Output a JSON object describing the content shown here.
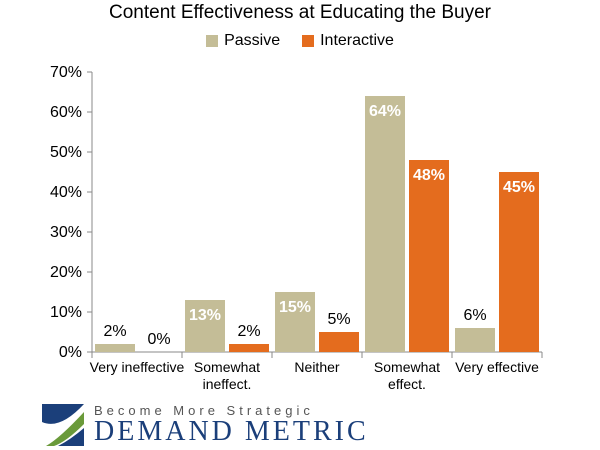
{
  "chart_data": {
    "type": "bar",
    "title": "Content Effectiveness at Educating the Buyer",
    "categories": [
      [
        "Very ineffective"
      ],
      [
        "Somewhat",
        "ineffect."
      ],
      [
        "Neither"
      ],
      [
        "Somewhat",
        "effect."
      ],
      [
        "Very effective"
      ]
    ],
    "series": [
      {
        "name": "Passive",
        "color": "#c4bd97",
        "values": [
          2,
          13,
          15,
          64,
          6
        ],
        "labels": [
          "2%",
          "13%",
          "15%",
          "64%",
          "6%"
        ]
      },
      {
        "name": "Interactive",
        "color": "#e46c1e",
        "values": [
          0,
          2,
          5,
          48,
          45
        ],
        "labels": [
          "0%",
          "2%",
          "5%",
          "48%",
          "45%"
        ]
      }
    ],
    "ylim": [
      0,
      70
    ],
    "yticks": [
      "0%",
      "10%",
      "20%",
      "30%",
      "40%",
      "50%",
      "60%",
      "70%"
    ],
    "legend_position": "top",
    "grid": false
  },
  "logo": {
    "tagline": "Become More Strategic",
    "brand": "DEMAND METRIC"
  }
}
